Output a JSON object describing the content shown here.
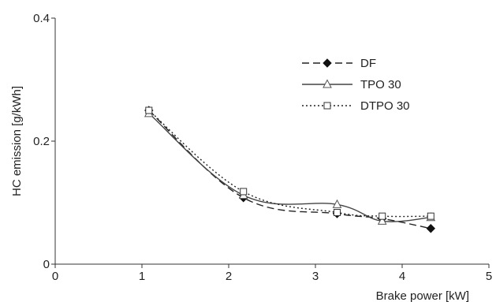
{
  "chart_data": {
    "type": "line",
    "xlabel": "Brake power [kW]",
    "ylabel": "HC emission [g/kWh]",
    "xlim": [
      0,
      5
    ],
    "ylim": [
      0,
      0.4
    ],
    "xticks": [
      0,
      1,
      2,
      3,
      4,
      5
    ],
    "yticks": [
      0,
      0.2,
      0.4
    ],
    "xtick_labels": [
      "0",
      "1",
      "2",
      "3",
      "4",
      "5"
    ],
    "ytick_labels": [
      "0",
      "0.2",
      "0.4"
    ],
    "grid": false,
    "legend_position": "upper-right",
    "series": [
      {
        "name": "DF",
        "line_style": "long-dash",
        "marker": "filled-diamond",
        "x": [
          1.08,
          2.17,
          3.25,
          3.77,
          4.33
        ],
        "y": [
          0.25,
          0.108,
          0.082,
          0.074,
          0.058
        ]
      },
      {
        "name": "TPO 30",
        "line_style": "solid",
        "marker": "open-triangle",
        "x": [
          1.08,
          2.17,
          3.25,
          3.77,
          4.33
        ],
        "y": [
          0.245,
          0.112,
          0.097,
          0.07,
          0.076
        ]
      },
      {
        "name": "DTPO 30",
        "line_style": "dotted",
        "marker": "open-square",
        "x": [
          1.08,
          2.17,
          3.25,
          3.77,
          4.33
        ],
        "y": [
          0.25,
          0.118,
          0.084,
          0.078,
          0.078
        ]
      }
    ]
  }
}
